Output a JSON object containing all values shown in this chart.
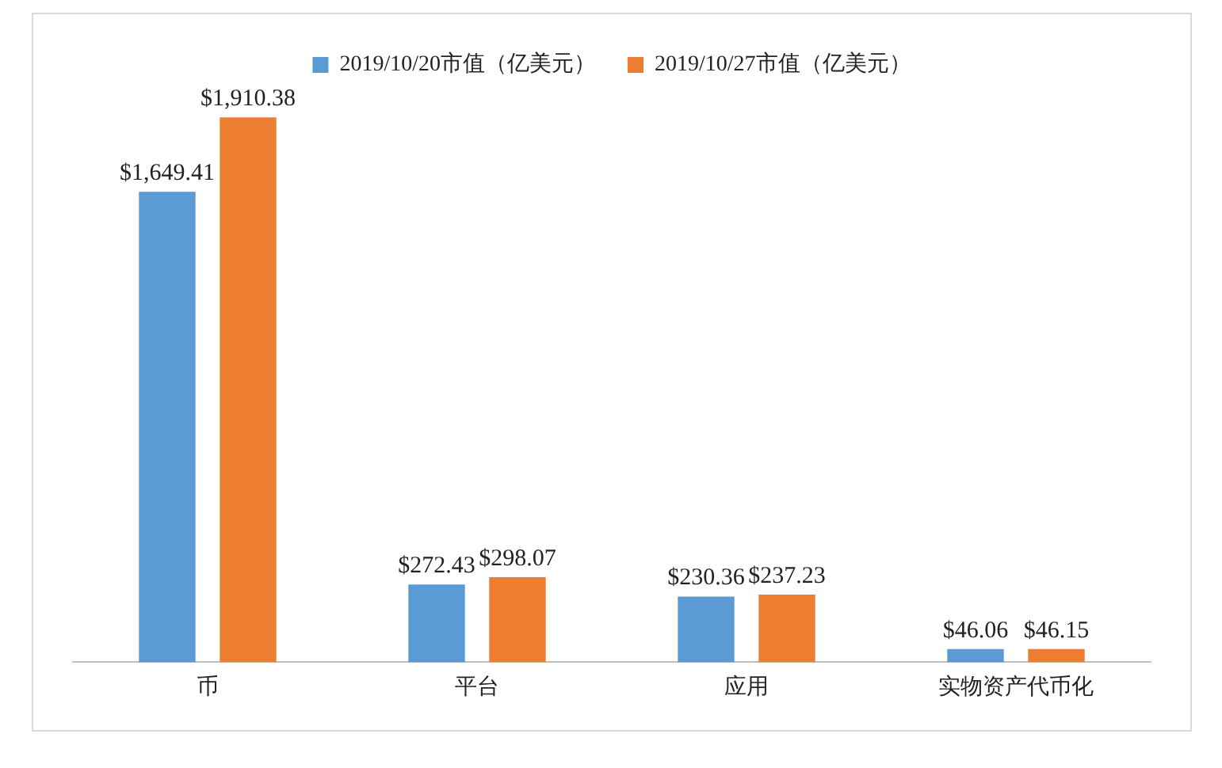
{
  "chart_data": {
    "type": "bar",
    "categories": [
      "币",
      "平台",
      "应用",
      "实物资产代币化"
    ],
    "series": [
      {
        "name": "2019/10/20市值（亿美元）",
        "color": "#5b9bd5",
        "values": [
          1649.41,
          272.43,
          230.36,
          46.06
        ],
        "value_labels": [
          "$1,649.41",
          "$272.43",
          "$230.36",
          "$46.06"
        ]
      },
      {
        "name": "2019/10/27市值（亿美元）",
        "color": "#ed7d31",
        "values": [
          1910.38,
          298.07,
          237.23,
          46.15
        ],
        "value_labels": [
          "$1,910.38",
          "$298.07",
          "$237.23",
          "$46.15"
        ]
      }
    ],
    "legend": "top",
    "grid": false,
    "tick_labels": "x"
  }
}
